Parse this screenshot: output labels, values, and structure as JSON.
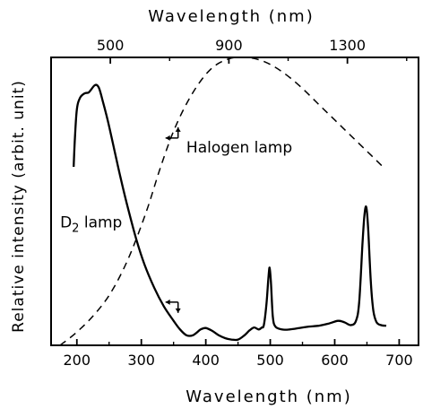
{
  "chart_data": {
    "type": "line",
    "title": "",
    "xlabel": "Wavelength  (nm)",
    "x2label": "Wavelength  (nm)",
    "ylabel": "Relative intensity (arbit. unit)",
    "xlim": [
      160,
      730
    ],
    "x2lim": [
      300,
      1540
    ],
    "ylim": [
      0,
      1
    ],
    "xticks": [
      200,
      300,
      400,
      500,
      600,
      700
    ],
    "x2ticks": [
      500,
      900,
      1300
    ],
    "grid": false,
    "series": [
      {
        "name": "D2 lamp",
        "axis": "bottom",
        "style": "solid",
        "points": [
          [
            195,
            0.62
          ],
          [
            197,
            0.72
          ],
          [
            200,
            0.82
          ],
          [
            205,
            0.86
          ],
          [
            212,
            0.875
          ],
          [
            218,
            0.878
          ],
          [
            222,
            0.888
          ],
          [
            227,
            0.902
          ],
          [
            231,
            0.904
          ],
          [
            235,
            0.89
          ],
          [
            240,
            0.85
          ],
          [
            248,
            0.78
          ],
          [
            258,
            0.68
          ],
          [
            268,
            0.58
          ],
          [
            280,
            0.47
          ],
          [
            292,
            0.37
          ],
          [
            305,
            0.28
          ],
          [
            320,
            0.2
          ],
          [
            335,
            0.135
          ],
          [
            350,
            0.085
          ],
          [
            360,
            0.055
          ],
          [
            370,
            0.035
          ],
          [
            380,
            0.035
          ],
          [
            392,
            0.055
          ],
          [
            400,
            0.06
          ],
          [
            410,
            0.05
          ],
          [
            420,
            0.035
          ],
          [
            430,
            0.025
          ],
          [
            440,
            0.02
          ],
          [
            450,
            0.02
          ],
          [
            460,
            0.035
          ],
          [
            468,
            0.052
          ],
          [
            475,
            0.062
          ],
          [
            482,
            0.055
          ],
          [
            487,
            0.062
          ],
          [
            490,
            0.07
          ],
          [
            494,
            0.14
          ],
          [
            497,
            0.23
          ],
          [
            499,
            0.27
          ],
          [
            501,
            0.22
          ],
          [
            504,
            0.1
          ],
          [
            508,
            0.065
          ],
          [
            518,
            0.055
          ],
          [
            530,
            0.055
          ],
          [
            545,
            0.06
          ],
          [
            560,
            0.065
          ],
          [
            575,
            0.068
          ],
          [
            590,
            0.075
          ],
          [
            605,
            0.085
          ],
          [
            615,
            0.08
          ],
          [
            625,
            0.07
          ],
          [
            633,
            0.085
          ],
          [
            638,
            0.15
          ],
          [
            643,
            0.35
          ],
          [
            646,
            0.45
          ],
          [
            649,
            0.48
          ],
          [
            652,
            0.4
          ],
          [
            656,
            0.22
          ],
          [
            660,
            0.12
          ],
          [
            665,
            0.08
          ],
          [
            672,
            0.07
          ],
          [
            680,
            0.068
          ]
        ]
      },
      {
        "name": "Halogen lamp",
        "axis": "top",
        "style": "dashed",
        "points": [
          [
            330,
            0.0
          ],
          [
            380,
            0.04
          ],
          [
            440,
            0.1
          ],
          [
            500,
            0.18
          ],
          [
            560,
            0.3
          ],
          [
            620,
            0.46
          ],
          [
            670,
            0.62
          ],
          [
            720,
            0.76
          ],
          [
            780,
            0.88
          ],
          [
            840,
            0.96
          ],
          [
            900,
            0.995
          ],
          [
            960,
            1.0
          ],
          [
            1020,
            0.985
          ],
          [
            1080,
            0.95
          ],
          [
            1140,
            0.9
          ],
          [
            1200,
            0.84
          ],
          [
            1260,
            0.78
          ],
          [
            1320,
            0.72
          ],
          [
            1380,
            0.66
          ],
          [
            1420,
            0.62
          ]
        ]
      }
    ],
    "annotations": [
      {
        "text": "Halogen lamp",
        "x": 452,
        "y": 0.67
      },
      {
        "text": "D",
        "sub": "2",
        "suffix": " lamp",
        "x": 174,
        "y": 0.41
      }
    ],
    "markers": [
      {
        "x": 357,
        "y": 0.72,
        "direction": "left-up"
      },
      {
        "x": 357,
        "y": 0.15,
        "direction": "left-down"
      }
    ]
  }
}
